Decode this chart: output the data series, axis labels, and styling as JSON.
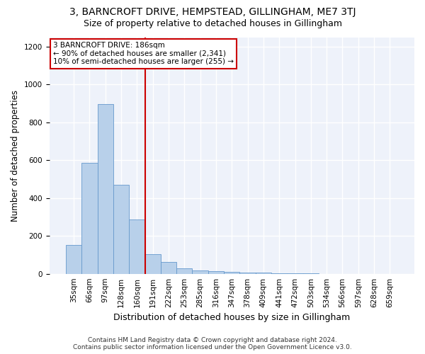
{
  "title": "3, BARNCROFT DRIVE, HEMPSTEAD, GILLINGHAM, ME7 3TJ",
  "subtitle": "Size of property relative to detached houses in Gillingham",
  "xlabel": "Distribution of detached houses by size in Gillingham",
  "ylabel": "Number of detached properties",
  "categories": [
    "35sqm",
    "66sqm",
    "97sqm",
    "128sqm",
    "160sqm",
    "191sqm",
    "222sqm",
    "253sqm",
    "285sqm",
    "316sqm",
    "347sqm",
    "378sqm",
    "409sqm",
    "441sqm",
    "472sqm",
    "503sqm",
    "534sqm",
    "566sqm",
    "597sqm",
    "628sqm",
    "659sqm"
  ],
  "values": [
    152,
    585,
    895,
    470,
    285,
    102,
    63,
    28,
    17,
    13,
    10,
    8,
    5,
    2,
    1,
    1,
    0,
    0,
    0,
    0,
    0
  ],
  "bar_color": "#b8d0ea",
  "bar_edge_color": "#6699cc",
  "vline_color": "#cc0000",
  "annotation_line1": "3 BARNCROFT DRIVE: 186sqm",
  "annotation_line2": "← 90% of detached houses are smaller (2,341)",
  "annotation_line3": "10% of semi-detached houses are larger (255) →",
  "annotation_box_color": "#ffffff",
  "annotation_box_edge_color": "#cc0000",
  "ylim": [
    0,
    1250
  ],
  "yticks": [
    0,
    200,
    400,
    600,
    800,
    1000,
    1200
  ],
  "plot_bg_color": "#eef2fa",
  "fig_bg_color": "#ffffff",
  "grid_color": "#ffffff",
  "footer_line1": "Contains HM Land Registry data © Crown copyright and database right 2024.",
  "footer_line2": "Contains public sector information licensed under the Open Government Licence v3.0.",
  "title_fontsize": 10,
  "subtitle_fontsize": 9,
  "xlabel_fontsize": 9,
  "ylabel_fontsize": 8.5,
  "tick_fontsize": 7.5,
  "annot_fontsize": 7.5,
  "footer_fontsize": 6.5
}
